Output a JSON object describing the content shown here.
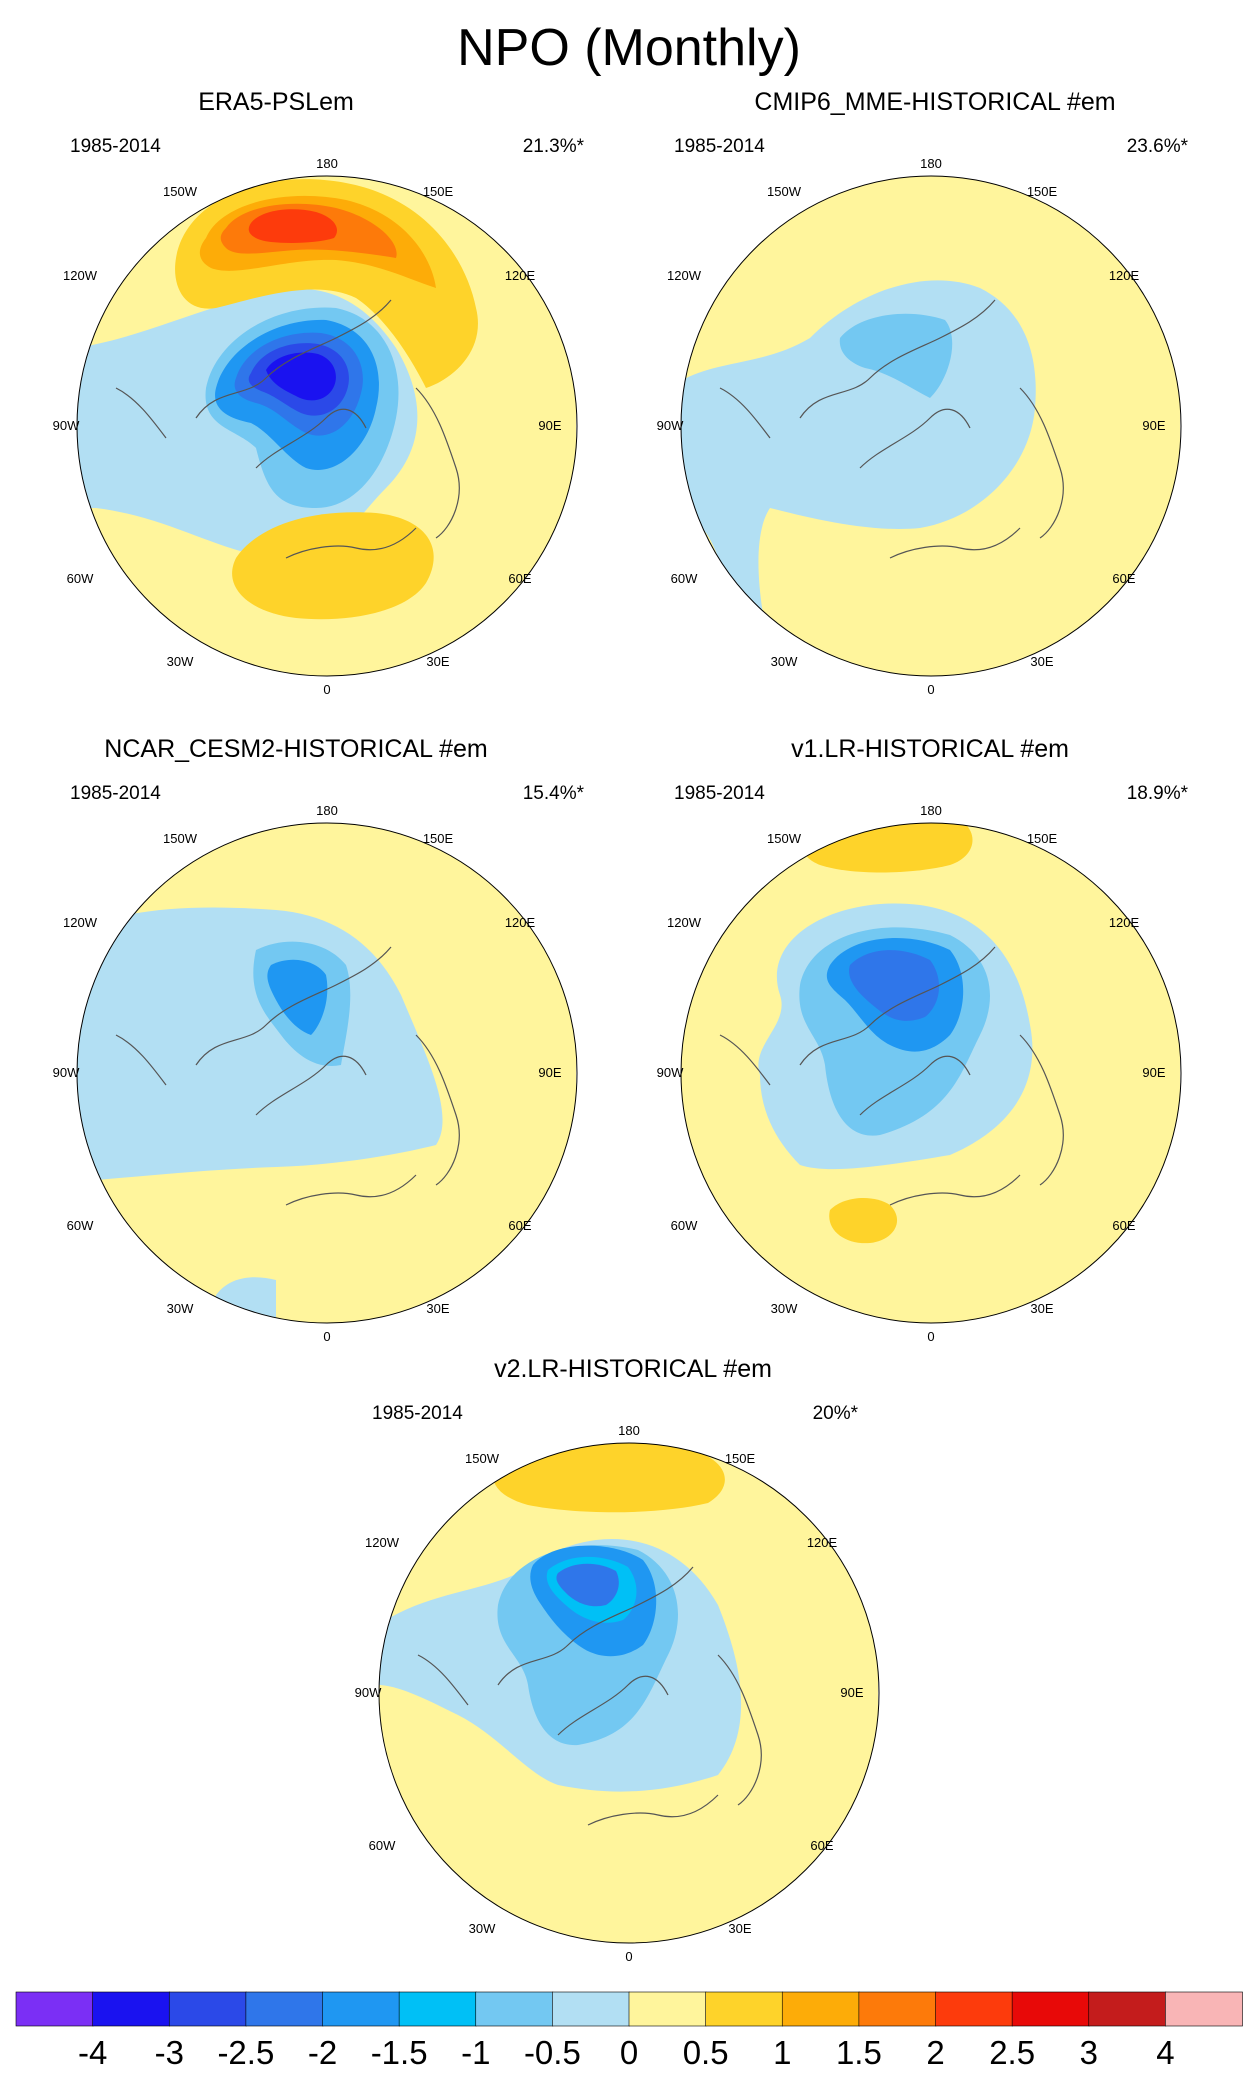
{
  "figure": {
    "title": "NPO (Monthly)"
  },
  "panels": [
    {
      "title": "ERA5-PSLem",
      "period": "1985-2014",
      "variance": "21.3%*"
    },
    {
      "title": "CMIP6_MME-HISTORICAL  #em",
      "period": "1985-2014",
      "variance": "23.6%*"
    },
    {
      "title": "NCAR_CESM2-HISTORICAL  #em",
      "period": "1985-2014",
      "variance": "15.4%*"
    },
    {
      "title": "v1.LR-HISTORICAL  #em",
      "period": "1985-2014",
      "variance": "18.9%*"
    },
    {
      "title": "v2.LR-HISTORICAL  #em",
      "period": "1985-2014",
      "variance": "20%*"
    }
  ],
  "longitude_labels": [
    "180",
    "150E",
    "120E",
    "90E",
    "60E",
    "30E",
    "0",
    "30W",
    "60W",
    "90W",
    "120W",
    "150W"
  ],
  "colorbar": {
    "labels": [
      "-4",
      "-3",
      "-2.5",
      "-2",
      "-1.5",
      "-1",
      "-0.5",
      "0",
      "0.5",
      "1",
      "1.5",
      "2",
      "2.5",
      "3",
      "4"
    ],
    "colors": [
      "#7b2ff5",
      "#1a12f0",
      "#2b49e8",
      "#2f76ea",
      "#1f97f2",
      "#00c0f6",
      "#73c8f2",
      "#b2dff3",
      "#fff59c",
      "#fed32a",
      "#fdac08",
      "#fd7a0a",
      "#fd3b0c",
      "#e80908",
      "#c41c1c",
      "#f9b5b6"
    ]
  },
  "map_layers": [
    {
      "panel": 0,
      "blobs": [
        {
          "level": "0.5",
          "color": "#fed32a"
        },
        {
          "level": "1",
          "color": "#fdac08"
        },
        {
          "level": "1.5",
          "color": "#fd7a0a"
        },
        {
          "level": "2",
          "color": "#fd3b0c"
        },
        {
          "level": "-0.5",
          "color": "#b2dff3"
        },
        {
          "level": "-1",
          "color": "#73c8f2"
        },
        {
          "level": "-1.5",
          "color": "#1f97f2"
        },
        {
          "level": "-2",
          "color": "#2f76ea"
        },
        {
          "level": "-2.5",
          "color": "#2b49e8"
        },
        {
          "level": "-3",
          "color": "#1a12f0"
        }
      ]
    }
  ]
}
